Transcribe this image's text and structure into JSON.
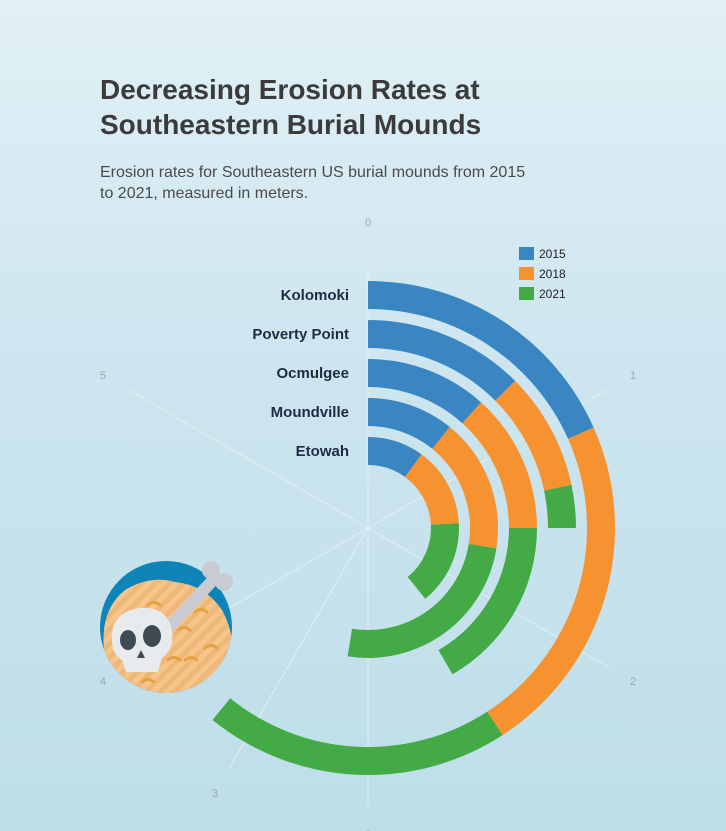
{
  "title": "Decreasing Erosion Rates at Southeastern Burial Mounds",
  "subtitle": "Erosion rates for Southeastern US burial mounds from 2015 to 2021, measured in meters.",
  "colors": {
    "2015": "#3a86c3",
    "2018": "#f6922f",
    "2021": "#43aa45"
  },
  "chart_data": {
    "type": "bar",
    "orientation": "radial",
    "title": "Decreasing Erosion Rates at Southeastern Burial Mounds",
    "subtitle": "Erosion rates for Southeastern US burial mounds from 2015 to 2021, measured in meters.",
    "categories": [
      "Kolomoki",
      "Poverty Point",
      "Ocmulgee",
      "Moundville",
      "Etowah"
    ],
    "series": [
      {
        "name": "2015",
        "values": [
          1.1,
          0.75,
          0.7,
          0.65,
          0.6
        ]
      },
      {
        "name": "2018",
        "values": [
          1.35,
          0.55,
          0.8,
          1.0,
          0.85
        ]
      },
      {
        "name": "2021",
        "values": [
          1.2,
          0.2,
          1.0,
          1.5,
          0.9
        ]
      }
    ],
    "angular_axis": {
      "range": [
        0,
        6
      ],
      "ticks": [
        "0",
        "1",
        "2",
        "3",
        "3",
        "4",
        "5"
      ]
    },
    "legend": {
      "position": "top-right",
      "entries": [
        "2015",
        "2018",
        "2021"
      ]
    },
    "grid": true
  }
}
